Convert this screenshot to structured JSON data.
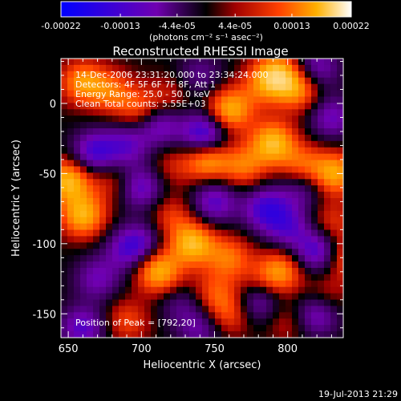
{
  "chart_data": {
    "type": "heatmap",
    "title": "Reconstructed RHESSI Image",
    "xlabel": "Heliocentric X (arcsec)",
    "ylabel": "Heliocentric Y (arcsec)",
    "xlim": [
      645,
      838
    ],
    "ylim": [
      -167,
      32
    ],
    "x_ticks": [
      650,
      700,
      750,
      800
    ],
    "y_ticks": [
      0,
      -50,
      -100,
      -150
    ],
    "colorbar": {
      "label_prefix": "(photons cm",
      "label_text": "(photons cm⁻² s⁻¹ asec⁻²)",
      "tick_values": [
        -0.00022,
        -0.00013,
        -4.4e-05,
        4.4e-05,
        0.00013,
        0.00022
      ],
      "tick_labels": [
        "-0.00022",
        "-0.00013",
        "-4.4e-05",
        "4.4e-05",
        "0.00013",
        "0.00022"
      ],
      "range": [
        -0.00022,
        0.00022
      ]
    },
    "annotations": [
      "14-Dec-2006 23:31:20.000 to 23:34:24.000",
      "Detectors: 4F 5F 6F 7F 8F, Att 1",
      "Energy Range: 25.0 - 50.0 keV",
      "Clean    Total counts: 5.55E+03"
    ],
    "peak_label": "Position of Peak = [792,20]",
    "peak": {
      "x": 792,
      "y": 20
    },
    "sources": [
      {
        "x": 660,
        "y": 15,
        "v": 0.75
      },
      {
        "x": 680,
        "y": 8,
        "v": 0.55
      },
      {
        "x": 700,
        "y": -5,
        "v": 0.55
      },
      {
        "x": 720,
        "y": 5,
        "v": 0.3
      },
      {
        "x": 743,
        "y": -22,
        "v": -1.0
      },
      {
        "x": 712,
        "y": -15,
        "v": -0.7
      },
      {
        "x": 690,
        "y": -30,
        "v": -0.6
      },
      {
        "x": 668,
        "y": -35,
        "v": -0.8
      },
      {
        "x": 760,
        "y": -5,
        "v": 0.9
      },
      {
        "x": 780,
        "y": 10,
        "v": 0.3
      },
      {
        "x": 792,
        "y": 20,
        "v": 1.0
      },
      {
        "x": 808,
        "y": 10,
        "v": 0.7
      },
      {
        "x": 820,
        "y": 25,
        "v": -0.6
      },
      {
        "x": 830,
        "y": -10,
        "v": -0.6
      },
      {
        "x": 790,
        "y": -28,
        "v": 0.95
      },
      {
        "x": 770,
        "y": -45,
        "v": 0.6
      },
      {
        "x": 745,
        "y": -40,
        "v": 0.85
      },
      {
        "x": 720,
        "y": -45,
        "v": 0.3
      },
      {
        "x": 810,
        "y": -45,
        "v": 0.6
      },
      {
        "x": 832,
        "y": -50,
        "v": 0.85
      },
      {
        "x": 650,
        "y": -55,
        "v": 0.95
      },
      {
        "x": 660,
        "y": -80,
        "v": 0.9
      },
      {
        "x": 700,
        "y": -60,
        "v": -0.7
      },
      {
        "x": 680,
        "y": -55,
        "v": 0.35
      },
      {
        "x": 720,
        "y": -80,
        "v": 0.4
      },
      {
        "x": 750,
        "y": -70,
        "v": -0.7
      },
      {
        "x": 785,
        "y": -75,
        "v": -0.8
      },
      {
        "x": 800,
        "y": -88,
        "v": -0.6
      },
      {
        "x": 830,
        "y": -85,
        "v": 0.4
      },
      {
        "x": 840,
        "y": -110,
        "v": 0.55
      },
      {
        "x": 820,
        "y": -105,
        "v": -0.8
      },
      {
        "x": 700,
        "y": -100,
        "v": -0.55
      },
      {
        "x": 690,
        "y": -105,
        "v": -0.5
      },
      {
        "x": 670,
        "y": -125,
        "v": -0.55
      },
      {
        "x": 735,
        "y": -100,
        "v": 0.95
      },
      {
        "x": 760,
        "y": -110,
        "v": 0.6
      },
      {
        "x": 710,
        "y": -118,
        "v": 0.85
      },
      {
        "x": 720,
        "y": -130,
        "v": 0.3
      },
      {
        "x": 750,
        "y": -135,
        "v": 0.45
      },
      {
        "x": 780,
        "y": -130,
        "v": 0.35
      },
      {
        "x": 795,
        "y": -120,
        "v": 0.75
      },
      {
        "x": 780,
        "y": -140,
        "v": -0.7
      },
      {
        "x": 820,
        "y": -150,
        "v": -0.7
      },
      {
        "x": 826,
        "y": -138,
        "v": 0.35
      },
      {
        "x": 660,
        "y": -160,
        "v": -0.7
      },
      {
        "x": 690,
        "y": -155,
        "v": 0.45
      },
      {
        "x": 740,
        "y": -160,
        "v": -0.5
      },
      {
        "x": 760,
        "y": -150,
        "v": 0.5
      },
      {
        "x": 800,
        "y": -155,
        "v": 0.3
      },
      {
        "x": 810,
        "y": -60,
        "v": -0.5
      },
      {
        "x": 725,
        "y": -140,
        "v": -0.45
      },
      {
        "x": 740,
        "y": 20,
        "v": -0.4
      }
    ]
  },
  "footer": {
    "date": "19-Jul-2013 21:29"
  }
}
